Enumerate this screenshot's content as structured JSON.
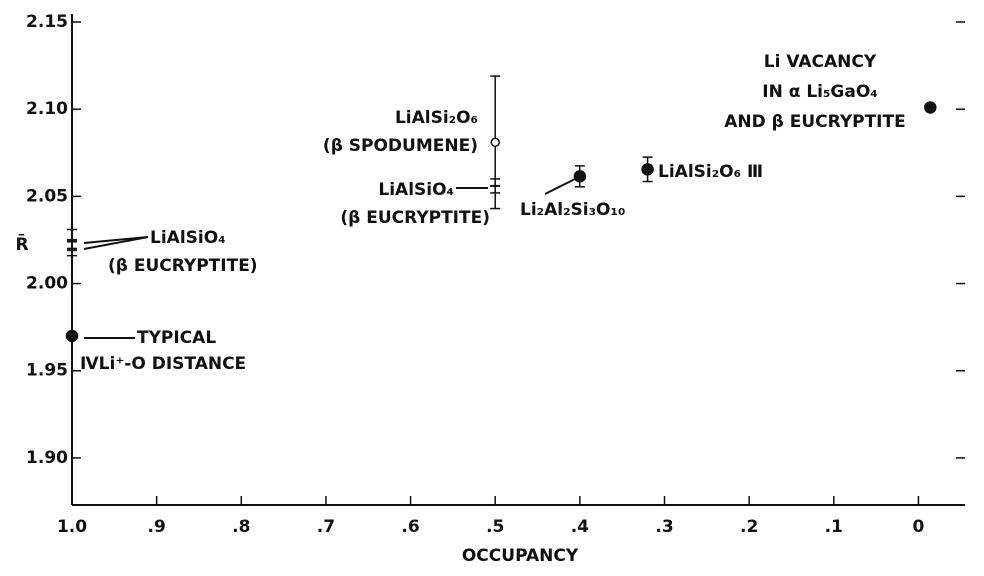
{
  "chart_data": {
    "type": "scatter",
    "xlabel": "OCCUPANCY",
    "ylabel": "R̄",
    "x": [
      1.0,
      1.0,
      1.0,
      0.5,
      0.5,
      0.4,
      0.32,
      -0.014
    ],
    "y": [
      2.025,
      2.02,
      1.97,
      2.081,
      2.056,
      2.0615,
      2.0655,
      2.101
    ],
    "yerr": [
      0.006,
      0.004,
      null,
      0.038,
      0.004,
      0.006,
      0.007,
      null
    ],
    "markers": [
      "bar",
      "bar",
      "filled",
      "open",
      "bar",
      "filled",
      "filled",
      "filled"
    ],
    "color": "#111111",
    "xlim": [
      1.0,
      -0.055
    ],
    "ylim": [
      1.873,
      2.15
    ],
    "xticks": [
      {
        "value": 1.0,
        "label": "1.0"
      },
      {
        "value": 0.9,
        "label": ".9"
      },
      {
        "value": 0.8,
        "label": ".8"
      },
      {
        "value": 0.7,
        "label": ".7"
      },
      {
        "value": 0.6,
        "label": ".6"
      },
      {
        "value": 0.5,
        "label": ".5"
      },
      {
        "value": 0.4,
        "label": ".4"
      },
      {
        "value": 0.3,
        "label": ".3"
      },
      {
        "value": 0.2,
        "label": ".2"
      },
      {
        "value": 0.1,
        "label": ".1"
      },
      0
    ],
    "yticks": [
      {
        "value": 1.9,
        "label": "1.90"
      },
      1.95,
      {
        "value": 2.0,
        "label": "2.00"
      },
      2.05,
      {
        "value": 2.1,
        "label": "2.10"
      },
      2.15
    ],
    "annotations": [
      "LiAlSiO₄",
      "(β EUCRYPTITE)",
      "TYPICAL",
      "ⅣLi⁺-O DISTANCE",
      "LiAlSi₂O₆",
      "(β SPODUMENE)",
      "LiAlSiO₄",
      "(β EUCRYPTITE)",
      "Li₂Al₂Si₃O₁₀",
      "LiAlSi₂O₆ Ⅲ",
      "Li VACANCY",
      "IN α Li₅GaO₄",
      "AND β EUCRYPTITE"
    ]
  }
}
